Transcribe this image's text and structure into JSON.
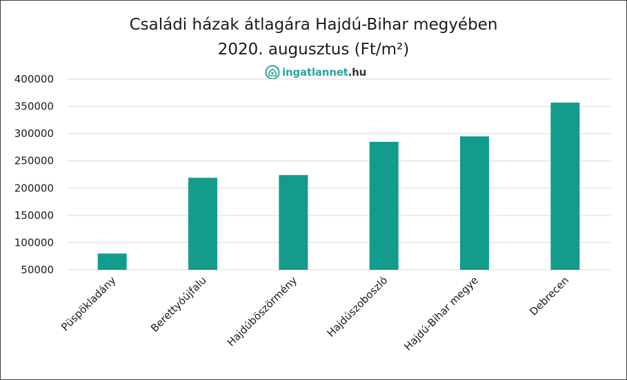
{
  "chart_data": {
    "type": "bar",
    "title_line1": "Családi házak átlagára Hajdú-Bihar megyében",
    "title_line2": "2020. augusztus (Ft/m²)",
    "categories": [
      "Püspökladány",
      "Berettyóújfalu",
      "Hajdúböszörmény",
      "Hajdúszoboszló",
      "Hajdú-Bihar megye",
      "Debrecen"
    ],
    "values": [
      80000,
      219000,
      224000,
      285000,
      295000,
      357000
    ],
    "yticks": [
      "50000",
      "100000",
      "150000",
      "200000",
      "250000",
      "300000",
      "350000",
      "400000"
    ],
    "ylim": [
      50000,
      400000
    ],
    "grid": true,
    "bar_color": "#139b8b",
    "grid_color": "#d9d9d9"
  },
  "logo": {
    "name": "ingatlannet",
    "tld": ".hu",
    "icon": "house-heart-icon",
    "color": "#2ba3a3"
  }
}
